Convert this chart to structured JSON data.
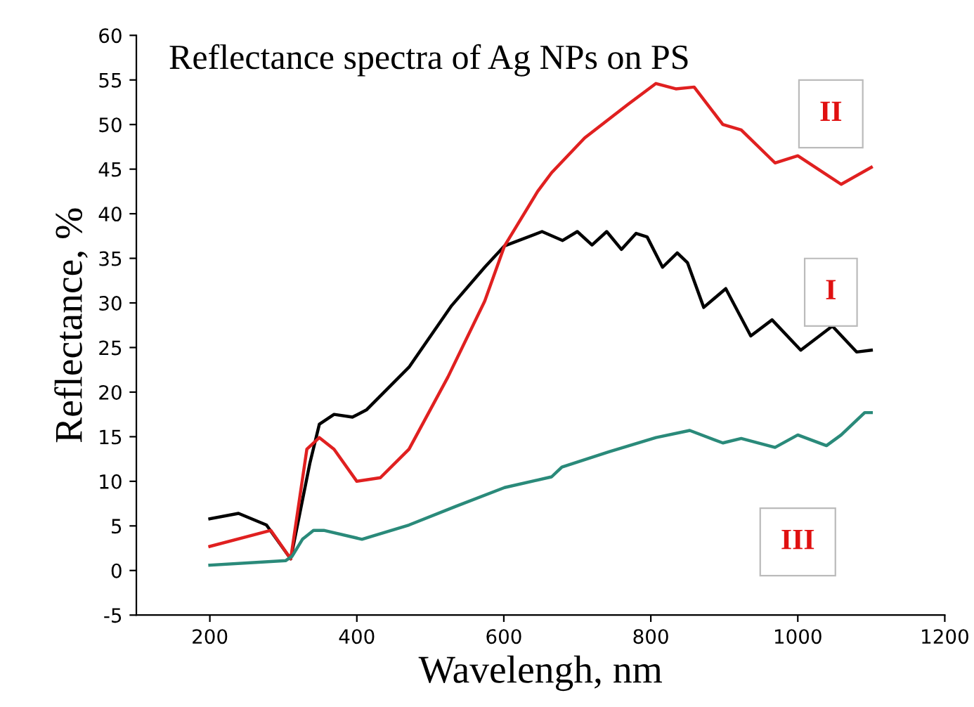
{
  "chart_data": {
    "type": "line",
    "title": "Reflectance spectra of Ag NPs on PS",
    "xlabel": "Wavelengh, nm",
    "ylabel": "Reflectance, %",
    "xlim": [
      100,
      1200
    ],
    "xticks": [
      200,
      400,
      600,
      800,
      1000,
      1200
    ],
    "ylim": [
      -5,
      60
    ],
    "yticks": [
      -5,
      0,
      5,
      10,
      15,
      20,
      25,
      30,
      35,
      40,
      45,
      50,
      55,
      60
    ],
    "grid": false,
    "legend": false,
    "line_style": "solid",
    "marker": "none",
    "series": [
      {
        "name": "I",
        "color": "#000000",
        "x": [
          200,
          239,
          277,
          310,
          336,
          349,
          369,
          394,
          413,
          471,
          529,
          574,
          601,
          652,
          680,
          700,
          720,
          740,
          760,
          780,
          795,
          816,
          836,
          850,
          872,
          902,
          936,
          965,
          1004,
          1047,
          1080,
          1100
        ],
        "values": [
          5.8,
          6.4,
          5.1,
          1.3,
          12,
          16.4,
          17.5,
          17.2,
          18,
          22.8,
          29.7,
          34,
          36.4,
          38,
          37,
          38,
          36.5,
          38,
          36,
          37.8,
          37.4,
          34,
          35.6,
          34.5,
          29.5,
          31.6,
          26.3,
          28.1,
          24.7,
          27.4,
          24.5,
          24.7
        ]
      },
      {
        "name": "II",
        "color": "#e02020",
        "x": [
          200,
          283,
          310,
          332,
          349,
          369,
          400,
          432,
          471,
          524,
          574,
          601,
          646,
          665,
          710,
          768,
          807,
          834,
          859,
          898,
          923,
          969,
          1000,
          1059,
          1100
        ],
        "values": [
          2.7,
          4.5,
          1.3,
          13.6,
          14.9,
          13.6,
          10,
          10.4,
          13.6,
          21.7,
          30.2,
          36.4,
          42.5,
          44.6,
          48.5,
          52.2,
          54.6,
          54,
          54.2,
          50,
          49.4,
          45.7,
          46.5,
          43.3,
          45.2
        ]
      },
      {
        "name": "III",
        "color": "#2a8a7a",
        "x": [
          200,
          303,
          312,
          326,
          341,
          355,
          407,
          471,
          535,
          601,
          665,
          679,
          743,
          807,
          853,
          898,
          923,
          969,
          1000,
          1039,
          1059,
          1091,
          1100
        ],
        "values": [
          0.6,
          1.1,
          1.6,
          3.5,
          4.5,
          4.5,
          3.5,
          5.1,
          7.2,
          9.3,
          10.5,
          11.6,
          13.3,
          14.9,
          15.7,
          14.3,
          14.8,
          13.8,
          15.2,
          14,
          15.2,
          17.7,
          17.7
        ]
      }
    ]
  }
}
